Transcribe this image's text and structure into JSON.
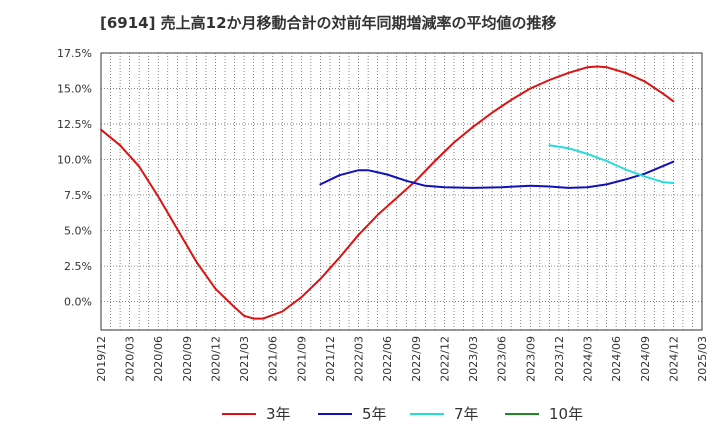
{
  "chart_data": {
    "type": "line",
    "title": "[6914]  売上高12か月移動合計の対前年同期増減率の平均値の推移",
    "ylim": [
      -2.0,
      17.5
    ],
    "yticks": [
      {
        "value": -0.0,
        "label": "0.0%"
      },
      {
        "value": 2.5,
        "label": "2.5%"
      },
      {
        "value": 5.0,
        "label": "5.0%"
      },
      {
        "value": 7.5,
        "label": "7.5%"
      },
      {
        "value": 10.0,
        "label": "10.0%"
      },
      {
        "value": 12.5,
        "label": "12.5%"
      },
      {
        "value": 15.0,
        "label": "15.0%"
      },
      {
        "value": 17.5,
        "label": "17.5%"
      }
    ],
    "xlim": [
      "2019-12",
      "2025-03"
    ],
    "xtick_labels": [
      "2019/12",
      "2020/03",
      "2020/06",
      "2020/09",
      "2020/12",
      "2021/03",
      "2021/06",
      "2021/09",
      "2021/12",
      "2022/03",
      "2022/06",
      "2022/09",
      "2022/12",
      "2023/03",
      "2023/06",
      "2023/09",
      "2023/12",
      "2024/03",
      "2024/06",
      "2024/09",
      "2024/12",
      "2025/03"
    ],
    "grid": true,
    "legend_position": "bottom",
    "series": [
      {
        "name": "3年",
        "color": "#dd1111",
        "points": [
          [
            "2019-12",
            12.1
          ],
          [
            "2020-02",
            11.0
          ],
          [
            "2020-04",
            9.5
          ],
          [
            "2020-06",
            7.4
          ],
          [
            "2020-08",
            5.1
          ],
          [
            "2020-10",
            2.8
          ],
          [
            "2020-12",
            0.9
          ],
          [
            "2021-02",
            -0.4
          ],
          [
            "2021-03",
            -1.0
          ],
          [
            "2021-04",
            -1.2
          ],
          [
            "2021-05",
            -1.2
          ],
          [
            "2021-07",
            -0.7
          ],
          [
            "2021-09",
            0.3
          ],
          [
            "2021-11",
            1.6
          ],
          [
            "2022-01",
            3.1
          ],
          [
            "2022-03",
            4.7
          ],
          [
            "2022-05",
            6.1
          ],
          [
            "2022-07",
            7.3
          ],
          [
            "2022-09",
            8.5
          ],
          [
            "2022-11",
            9.9
          ],
          [
            "2023-01",
            11.2
          ],
          [
            "2023-03",
            12.3
          ],
          [
            "2023-05",
            13.3
          ],
          [
            "2023-07",
            14.2
          ],
          [
            "2023-09",
            15.0
          ],
          [
            "2023-11",
            15.6
          ],
          [
            "2024-01",
            16.1
          ],
          [
            "2024-03",
            16.5
          ],
          [
            "2024-04",
            16.55
          ],
          [
            "2024-05",
            16.5
          ],
          [
            "2024-07",
            16.1
          ],
          [
            "2024-09",
            15.5
          ],
          [
            "2024-11",
            14.6
          ],
          [
            "2024-12",
            14.1
          ]
        ]
      },
      {
        "name": "5年",
        "color": "#1111bb",
        "points": [
          [
            "2021-11",
            8.25
          ],
          [
            "2022-01",
            8.9
          ],
          [
            "2022-03",
            9.25
          ],
          [
            "2022-04",
            9.25
          ],
          [
            "2022-06",
            8.95
          ],
          [
            "2022-08",
            8.5
          ],
          [
            "2022-10",
            8.15
          ],
          [
            "2022-12",
            8.05
          ],
          [
            "2023-03",
            8.0
          ],
          [
            "2023-06",
            8.05
          ],
          [
            "2023-09",
            8.15
          ],
          [
            "2023-11",
            8.1
          ],
          [
            "2024-01",
            8.0
          ],
          [
            "2024-03",
            8.05
          ],
          [
            "2024-05",
            8.25
          ],
          [
            "2024-07",
            8.6
          ],
          [
            "2024-09",
            9.0
          ],
          [
            "2024-12",
            9.85
          ]
        ]
      },
      {
        "name": "7年",
        "color": "#22dddd",
        "points": [
          [
            "2023-11",
            11.0
          ],
          [
            "2024-01",
            10.8
          ],
          [
            "2024-03",
            10.4
          ],
          [
            "2024-05",
            9.9
          ],
          [
            "2024-07",
            9.3
          ],
          [
            "2024-09",
            8.8
          ],
          [
            "2024-11",
            8.4
          ],
          [
            "2024-12",
            8.35
          ]
        ]
      },
      {
        "name": "10年",
        "color": "#228822",
        "points": []
      }
    ]
  }
}
